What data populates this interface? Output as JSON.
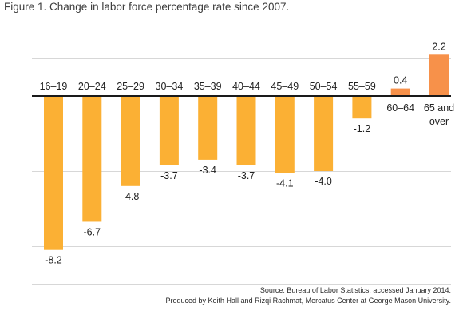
{
  "figure_title": "Figure 1. Change in labor force percentage rate since 2007.",
  "colors": {
    "negative_bar": "#fbb034",
    "positive_bar": "#f7914a",
    "gridline": "#d7d7d7",
    "zero_line": "#1a1a1a",
    "text": "#222222"
  },
  "chart_data": {
    "type": "bar",
    "title": "Figure 1. Change in labor force percentage rate since 2007.",
    "xlabel": "",
    "ylabel": "",
    "categories": [
      "16–19",
      "20–24",
      "25–29",
      "30–34",
      "35–39",
      "40–44",
      "45–49",
      "50–54",
      "55–59",
      "60–64",
      "65 and over"
    ],
    "values": [
      -8.2,
      -6.7,
      -4.8,
      -3.7,
      -3.4,
      -3.7,
      -4.1,
      -4.0,
      -1.2,
      0.4,
      2.2
    ],
    "value_labels": [
      "-8.2",
      "-6.7",
      "-4.8",
      "-3.7",
      "-3.4",
      "-3.7",
      "-4.1",
      "-4.0",
      "-1.2",
      "0.4",
      "2.2"
    ],
    "ylim": [
      -10,
      2
    ],
    "grid": true,
    "legend": "none"
  },
  "source": {
    "line1": "Source: Bureau of Labor Statistics, accessed January 2014.",
    "line2": "Produced by Keith Hall and Rizqi Rachmat, Mercatus Center at George Mason University."
  }
}
